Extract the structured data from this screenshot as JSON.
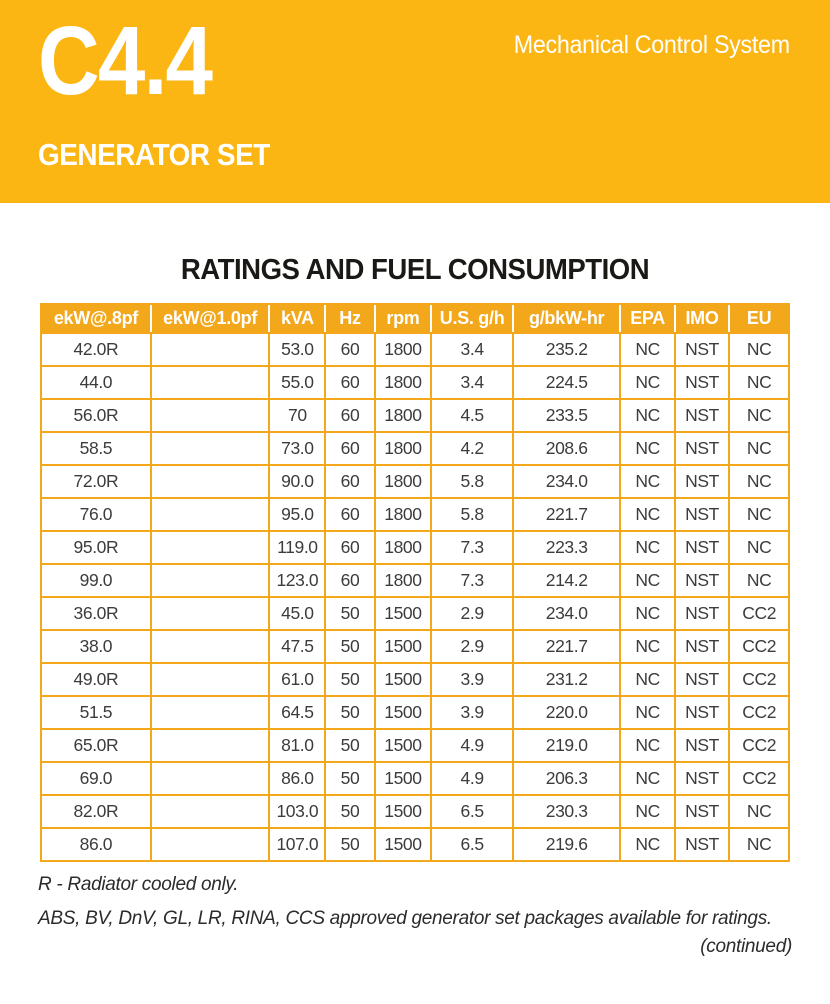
{
  "banner": {
    "model": "C4.4",
    "subtitle": "GENERATOR SET",
    "tagline": "Mechanical Control System"
  },
  "section_title": "RATINGS AND FUEL CONSUMPTION",
  "table": {
    "columns": [
      "ekW@.8pf",
      "ekW@1.0pf",
      "kVA",
      "Hz",
      "rpm",
      "U.S. g/h",
      "g/bkW-hr",
      "EPA",
      "IMO",
      "EU"
    ],
    "rows": [
      [
        "42.0R",
        "",
        "53.0",
        "60",
        "1800",
        "3.4",
        "235.2",
        "NC",
        "NST",
        "NC"
      ],
      [
        "44.0",
        "",
        "55.0",
        "60",
        "1800",
        "3.4",
        "224.5",
        "NC",
        "NST",
        "NC"
      ],
      [
        "56.0R",
        "",
        "70",
        "60",
        "1800",
        "4.5",
        "233.5",
        "NC",
        "NST",
        "NC"
      ],
      [
        "58.5",
        "",
        "73.0",
        "60",
        "1800",
        "4.2",
        "208.6",
        "NC",
        "NST",
        "NC"
      ],
      [
        "72.0R",
        "",
        "90.0",
        "60",
        "1800",
        "5.8",
        "234.0",
        "NC",
        "NST",
        "NC"
      ],
      [
        "76.0",
        "",
        "95.0",
        "60",
        "1800",
        "5.8",
        "221.7",
        "NC",
        "NST",
        "NC"
      ],
      [
        "95.0R",
        "",
        "119.0",
        "60",
        "1800",
        "7.3",
        "223.3",
        "NC",
        "NST",
        "NC"
      ],
      [
        "99.0",
        "",
        "123.0",
        "60",
        "1800",
        "7.3",
        "214.2",
        "NC",
        "NST",
        "NC"
      ],
      [
        "36.0R",
        "",
        "45.0",
        "50",
        "1500",
        "2.9",
        "234.0",
        "NC",
        "NST",
        "CC2"
      ],
      [
        "38.0",
        "",
        "47.5",
        "50",
        "1500",
        "2.9",
        "221.7",
        "NC",
        "NST",
        "CC2"
      ],
      [
        "49.0R",
        "",
        "61.0",
        "50",
        "1500",
        "3.9",
        "231.2",
        "NC",
        "NST",
        "CC2"
      ],
      [
        "51.5",
        "",
        "64.5",
        "50",
        "1500",
        "3.9",
        "220.0",
        "NC",
        "NST",
        "CC2"
      ],
      [
        "65.0R",
        "",
        "81.0",
        "50",
        "1500",
        "4.9",
        "219.0",
        "NC",
        "NST",
        "CC2"
      ],
      [
        "69.0",
        "",
        "86.0",
        "50",
        "1500",
        "4.9",
        "206.3",
        "NC",
        "NST",
        "CC2"
      ],
      [
        "82.0R",
        "",
        "103.0",
        "50",
        "1500",
        "6.5",
        "230.3",
        "NC",
        "NST",
        "NC"
      ],
      [
        "86.0",
        "",
        "107.0",
        "50",
        "1500",
        "6.5",
        "219.6",
        "NC",
        "NST",
        "NC"
      ]
    ]
  },
  "notes": [
    "R - Radiator cooled only.",
    "ABS, BV, DnV, GL, LR, RINA, CCS approved generator set packages available for ratings."
  ],
  "continued_label": "(continued)",
  "colors": {
    "banner_yellow": "#FCB614",
    "table_yellow": "#F3A81C",
    "header_text": "#FFFFFF",
    "body_text": "#3C3C3C",
    "title_text": "#1B1916"
  }
}
